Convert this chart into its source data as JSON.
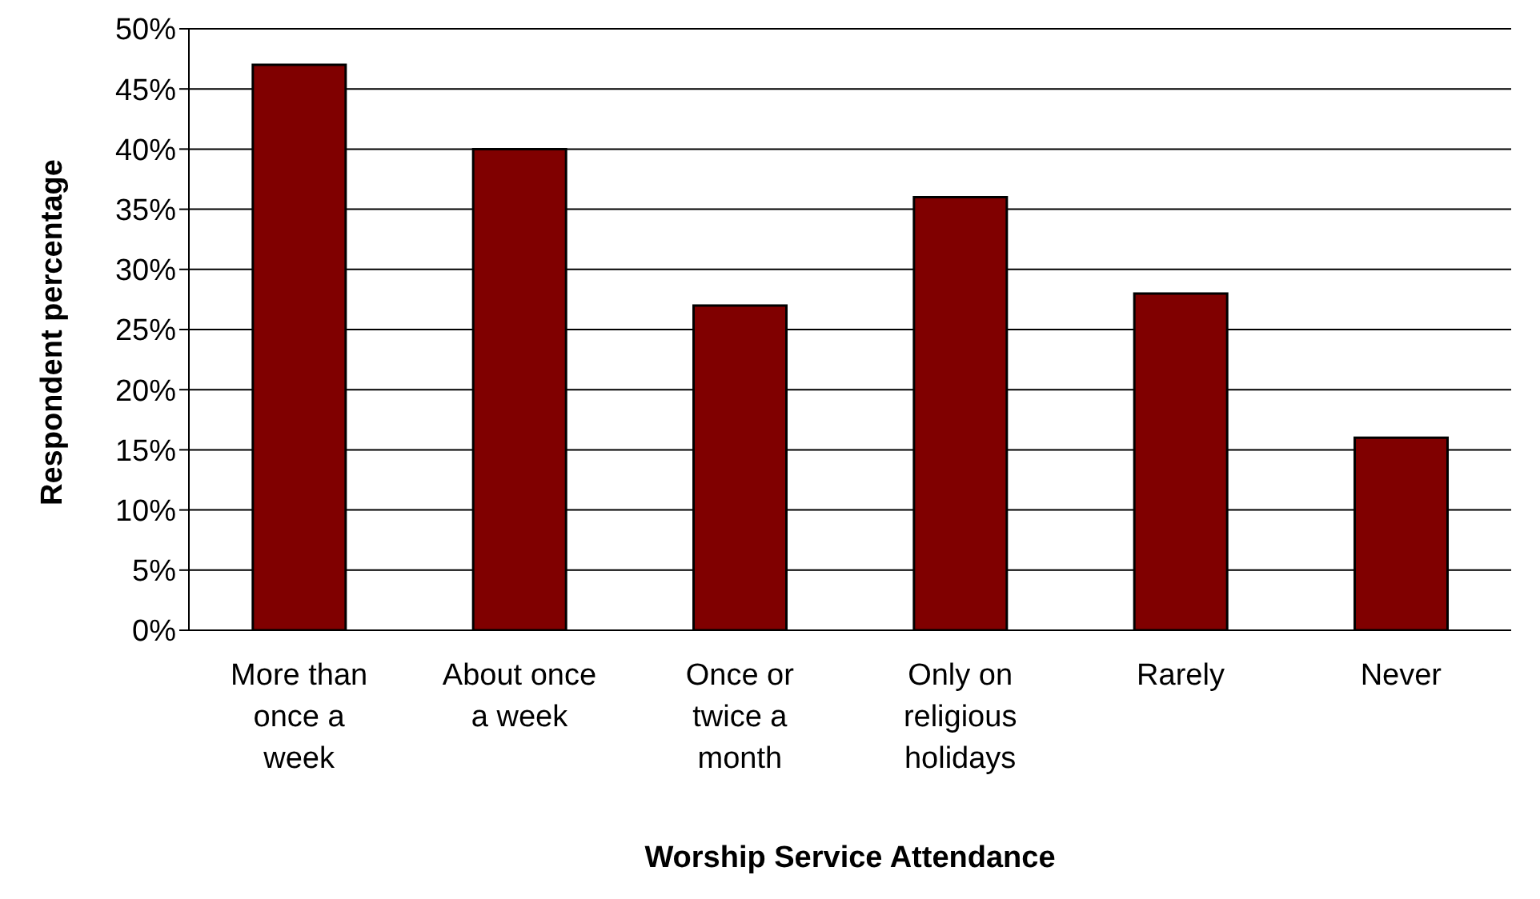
{
  "chart_data": {
    "type": "bar",
    "xlabel": "Worship Service Attendance",
    "ylabel": "Respondent percentage",
    "categories": [
      "More than once a week",
      "About once a week",
      "Once or twice a month",
      "Only on religious holidays",
      "Rarely",
      "Never"
    ],
    "values": [
      47,
      40,
      27,
      36,
      28,
      16
    ],
    "color": "#800000",
    "ylim": [
      0,
      50
    ],
    "yticks": [
      {
        "value": 0,
        "label": "0%"
      },
      {
        "value": 5,
        "label": "5%"
      },
      {
        "value": 10,
        "label": "10%"
      },
      {
        "value": 15,
        "label": "15%"
      },
      {
        "value": 20,
        "label": "20%"
      },
      {
        "value": 25,
        "label": "25%"
      },
      {
        "value": 30,
        "label": "30%"
      },
      {
        "value": 35,
        "label": "35%"
      },
      {
        "value": 40,
        "label": "40%"
      },
      {
        "value": 45,
        "label": "45%"
      },
      {
        "value": 50,
        "label": "50%"
      }
    ],
    "grid": "y",
    "legend": false
  }
}
